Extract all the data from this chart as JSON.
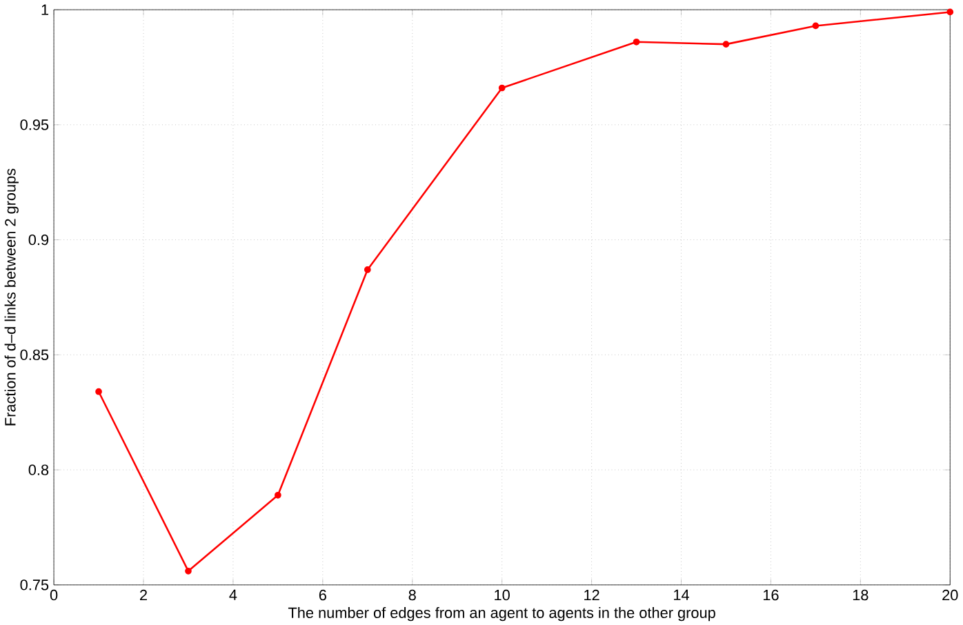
{
  "chart_data": {
    "type": "line",
    "xlabel": "The number of edges from an agent to agents in the other group",
    "ylabel": "Fraction of d–d links between 2 groups",
    "x": [
      1,
      3,
      5,
      7,
      10,
      13,
      15,
      17,
      20
    ],
    "series": [
      {
        "color": "#ff0000",
        "values": [
          0.834,
          0.756,
          0.789,
          0.887,
          0.966,
          0.986,
          0.985,
          0.993,
          0.999
        ]
      }
    ],
    "xlim": [
      0,
      20
    ],
    "ylim": [
      0.75,
      1
    ],
    "xticks": [
      0,
      2,
      4,
      6,
      8,
      10,
      12,
      14,
      16,
      18,
      20
    ],
    "yticks": [
      0.75,
      0.8,
      0.85,
      0.9,
      0.95,
      1
    ],
    "grid": true,
    "marker": "circle",
    "line_style": "solid"
  }
}
